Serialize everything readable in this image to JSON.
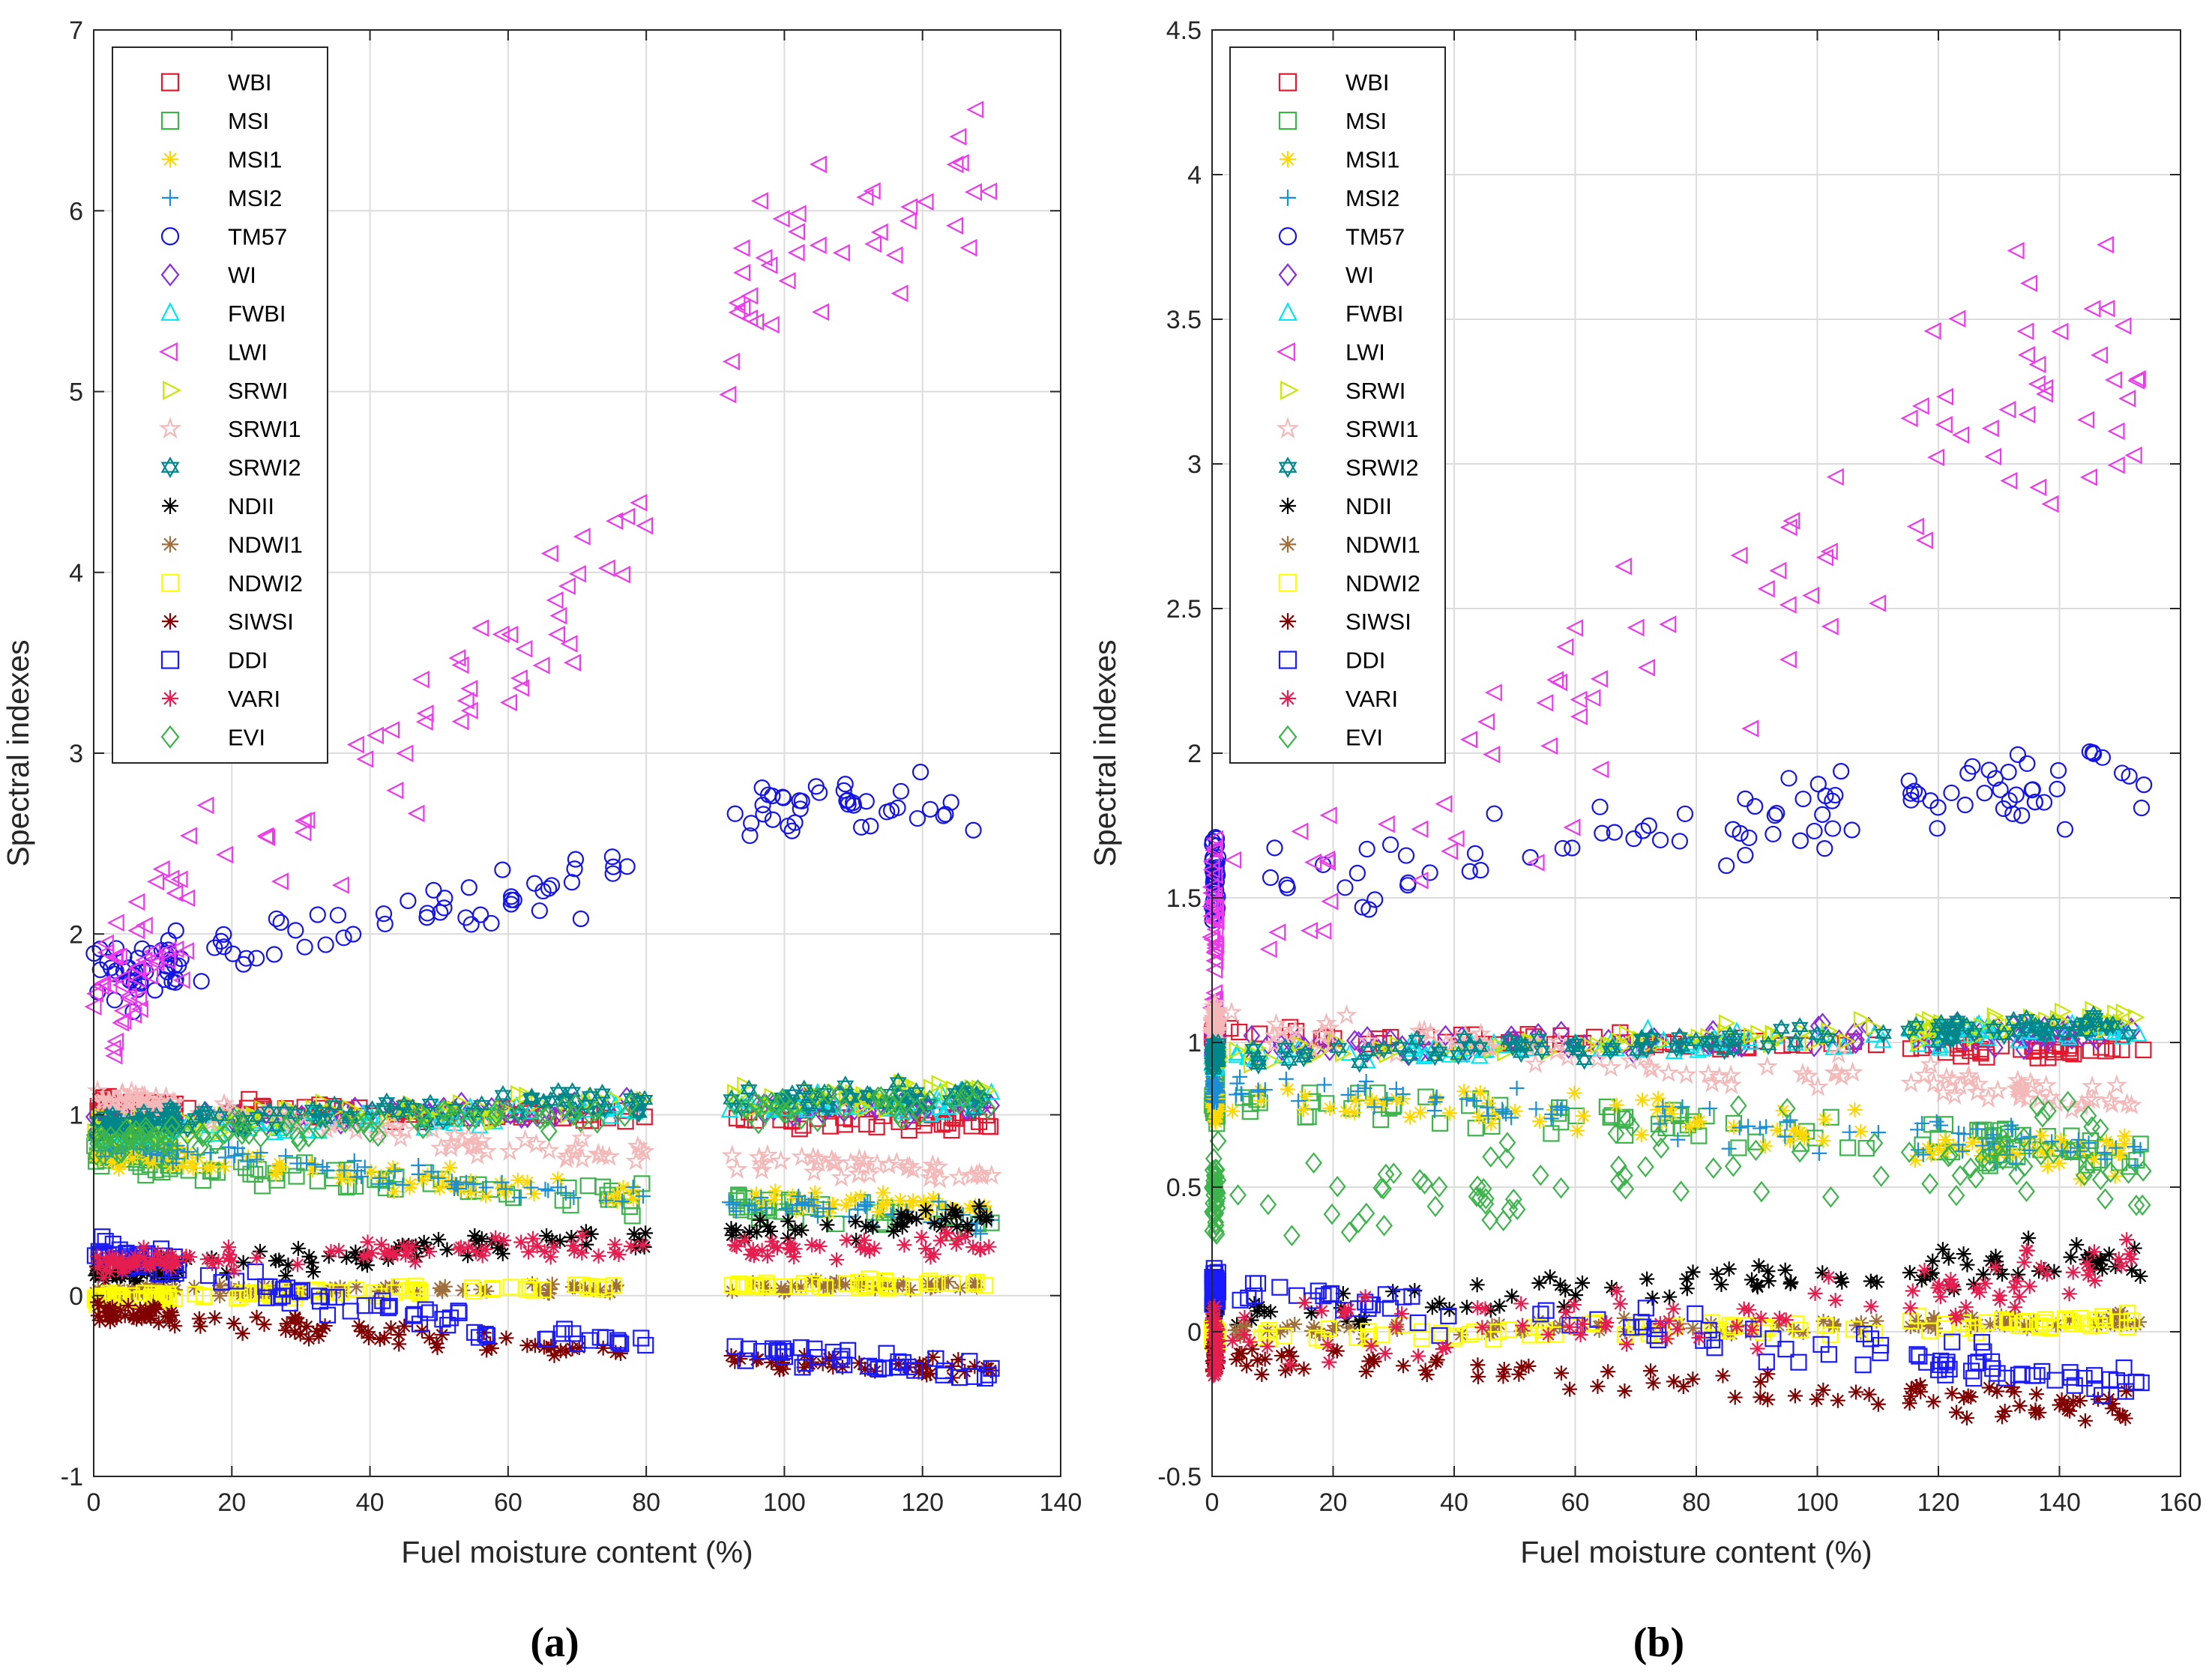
{
  "chart_data": [
    {
      "type": "scatter",
      "panel_label": "(a)",
      "xlabel": "Fuel moisture content (%)",
      "ylabel": "Spectral indexes",
      "xlim": [
        0,
        140
      ],
      "ylim": [
        -1,
        7
      ],
      "xticks": [
        "0",
        "20",
        "40",
        "60",
        "80",
        "100",
        "120",
        "140"
      ],
      "yticks": [
        "-1",
        "0",
        "1",
        "2",
        "3",
        "4",
        "5",
        "6",
        "7"
      ],
      "grid": true,
      "legend_position": "top-left",
      "x_sampling": {
        "dense": [
          0,
          12
        ],
        "sparse": [
          10,
          80
        ],
        "high": [
          92,
          130
        ]
      },
      "series": [
        {
          "name": "WBI",
          "marker": "square",
          "color": "#e2182f",
          "trend": [
            [
              0,
              1.05
            ],
            [
              60,
              1.0
            ],
            [
              130,
              0.96
            ]
          ],
          "spread": 0.04
        },
        {
          "name": "MSI",
          "marker": "square",
          "color": "#3cb44b",
          "trend": [
            [
              0,
              0.78
            ],
            [
              60,
              0.58
            ],
            [
              130,
              0.42
            ]
          ],
          "spread": 0.06
        },
        {
          "name": "MSI1",
          "marker": "asterisk",
          "color": "#ffd700",
          "trend": [
            [
              0,
              0.8
            ],
            [
              60,
              0.6
            ],
            [
              130,
              0.48
            ]
          ],
          "spread": 0.05
        },
        {
          "name": "MSI2",
          "marker": "plus",
          "color": "#1a8fd6",
          "trend": [
            [
              0,
              0.85
            ],
            [
              60,
              0.6
            ],
            [
              130,
              0.42
            ]
          ],
          "spread": 0.05
        },
        {
          "name": "TM57",
          "marker": "circle",
          "color": "#1414e6",
          "trend": [
            [
              0,
              1.75
            ],
            [
              40,
              2.1
            ],
            [
              60,
              2.15
            ],
            [
              80,
              2.45
            ],
            [
              100,
              2.7
            ],
            [
              130,
              2.75
            ]
          ],
          "spread": 0.12
        },
        {
          "name": "WI",
          "marker": "diamond",
          "color": "#8a2be2",
          "trend": [
            [
              0,
              0.95
            ],
            [
              60,
              1.02
            ],
            [
              130,
              1.05
            ]
          ],
          "spread": 0.04
        },
        {
          "name": "FWBI",
          "marker": "triangle-up",
          "color": "#00e5ee",
          "trend": [
            [
              0,
              0.9
            ],
            [
              60,
              1.0
            ],
            [
              130,
              1.07
            ]
          ],
          "spread": 0.05
        },
        {
          "name": "LWI",
          "marker": "triangle-left",
          "color": "#ee38ee",
          "trend": [
            [
              0,
              1.55
            ],
            [
              20,
              2.3
            ],
            [
              40,
              2.9
            ],
            [
              60,
              3.4
            ],
            [
              80,
              4.3
            ],
            [
              95,
              5.4
            ],
            [
              110,
              5.9
            ],
            [
              130,
              6.2
            ]
          ],
          "spread": 0.35
        },
        {
          "name": "SRWI",
          "marker": "triangle-right",
          "color": "#c8e600",
          "trend": [
            [
              0,
              0.92
            ],
            [
              60,
              1.05
            ],
            [
              130,
              1.12
            ]
          ],
          "spread": 0.05
        },
        {
          "name": "SRWI1",
          "marker": "pentagram",
          "color": "#f4b8b8",
          "trend": [
            [
              0,
              1.1
            ],
            [
              60,
              0.82
            ],
            [
              130,
              0.68
            ]
          ],
          "spread": 0.04
        },
        {
          "name": "SRWI2",
          "marker": "hexagram",
          "color": "#00868b",
          "trend": [
            [
              0,
              0.95
            ],
            [
              60,
              1.05
            ],
            [
              130,
              1.1
            ]
          ],
          "spread": 0.05
        },
        {
          "name": "NDII",
          "marker": "asterisk",
          "color": "#000000",
          "trend": [
            [
              0,
              0.12
            ],
            [
              60,
              0.28
            ],
            [
              130,
              0.42
            ]
          ],
          "spread": 0.05
        },
        {
          "name": "NDWI1",
          "marker": "asterisk",
          "color": "#a0703c",
          "trend": [
            [
              0,
              0.02
            ],
            [
              60,
              0.04
            ],
            [
              130,
              0.06
            ]
          ],
          "spread": 0.02
        },
        {
          "name": "NDWI2",
          "marker": "square",
          "color": "#ffff00",
          "trend": [
            [
              0,
              -0.02
            ],
            [
              60,
              0.04
            ],
            [
              130,
              0.07
            ]
          ],
          "spread": 0.02
        },
        {
          "name": "SIWSI",
          "marker": "asterisk",
          "color": "#800000",
          "trend": [
            [
              0,
              -0.08
            ],
            [
              60,
              -0.28
            ],
            [
              130,
              -0.42
            ]
          ],
          "spread": 0.04
        },
        {
          "name": "DDI",
          "marker": "square",
          "color": "#1a1aff",
          "trend": [
            [
              0,
              0.25
            ],
            [
              30,
              0.0
            ],
            [
              60,
              -0.2
            ],
            [
              130,
              -0.42
            ]
          ],
          "spread": 0.05
        },
        {
          "name": "VARI",
          "marker": "asterisk",
          "color": "#e61e50",
          "trend": [
            [
              0,
              0.18
            ],
            [
              60,
              0.25
            ],
            [
              130,
              0.28
            ]
          ],
          "spread": 0.05
        },
        {
          "name": "EVI",
          "marker": "diamond",
          "color": "#3cb44b",
          "trend": [
            [
              0,
              0.85
            ],
            [
              60,
              0.98
            ],
            [
              130,
              1.08
            ]
          ],
          "spread": 0.06
        }
      ]
    },
    {
      "type": "scatter",
      "panel_label": "(b)",
      "xlabel": "Fuel moisture content (%)",
      "ylabel": "Spectral indexes",
      "xlim": [
        0,
        160
      ],
      "ylim": [
        -0.5,
        4.5
      ],
      "xticks": [
        "0",
        "20",
        "40",
        "60",
        "80",
        "100",
        "120",
        "140",
        "160"
      ],
      "yticks": [
        "-0.5",
        "0",
        "0.5",
        "1",
        "1.5",
        "2",
        "2.5",
        "3",
        "3.5",
        "4",
        "4.5"
      ],
      "grid": true,
      "legend_position": "top-left",
      "x_sampling": {
        "dense": [
          0,
          1
        ],
        "sparse": [
          3,
          111
        ],
        "high": [
          115,
          154
        ]
      },
      "series": [
        {
          "name": "WBI",
          "marker": "square",
          "color": "#e2182f",
          "trend": [
            [
              0,
              1.03
            ],
            [
              80,
              1.0
            ],
            [
              154,
              0.97
            ]
          ],
          "spread": 0.02
        },
        {
          "name": "MSI",
          "marker": "square",
          "color": "#3cb44b",
          "trend": [
            [
              0,
              0.8
            ],
            [
              80,
              0.72
            ],
            [
              154,
              0.6
            ]
          ],
          "spread": 0.05
        },
        {
          "name": "MSI1",
          "marker": "asterisk",
          "color": "#ffd700",
          "trend": [
            [
              0,
              0.8
            ],
            [
              80,
              0.72
            ],
            [
              154,
              0.6
            ]
          ],
          "spread": 0.05
        },
        {
          "name": "MSI2",
          "marker": "plus",
          "color": "#1a8fd6",
          "trend": [
            [
              0,
              0.85
            ],
            [
              80,
              0.72
            ],
            [
              154,
              0.6
            ]
          ],
          "spread": 0.05
        },
        {
          "name": "TM57",
          "marker": "circle",
          "color": "#1414e6",
          "trend": [
            [
              0,
              1.55
            ],
            [
              40,
              1.62
            ],
            [
              80,
              1.72
            ],
            [
              110,
              1.82
            ],
            [
              154,
              1.95
            ]
          ],
          "spread": 0.1
        },
        {
          "name": "WI",
          "marker": "diamond",
          "color": "#8a2be2",
          "trend": [
            [
              0,
              0.98
            ],
            [
              80,
              1.0
            ],
            [
              154,
              1.05
            ]
          ],
          "spread": 0.03
        },
        {
          "name": "FWBI",
          "marker": "triangle-up",
          "color": "#00e5ee",
          "trend": [
            [
              0,
              0.95
            ],
            [
              80,
              1.0
            ],
            [
              154,
              1.05
            ]
          ],
          "spread": 0.03
        },
        {
          "name": "LWI",
          "marker": "triangle-left",
          "color": "#ee38ee",
          "trend": [
            [
              0,
              1.35
            ],
            [
              20,
              1.7
            ],
            [
              40,
              1.95
            ],
            [
              60,
              2.15
            ],
            [
              80,
              2.4
            ],
            [
              100,
              2.7
            ],
            [
              120,
              3.25
            ],
            [
              154,
              3.3
            ]
          ],
          "spread": 0.3
        },
        {
          "name": "SRWI",
          "marker": "triangle-right",
          "color": "#c8e600",
          "trend": [
            [
              0,
              0.95
            ],
            [
              80,
              1.02
            ],
            [
              154,
              1.08
            ]
          ],
          "spread": 0.03
        },
        {
          "name": "SRWI1",
          "marker": "pentagram",
          "color": "#f4b8b8",
          "trend": [
            [
              0,
              1.08
            ],
            [
              80,
              0.92
            ],
            [
              154,
              0.8
            ]
          ],
          "spread": 0.04
        },
        {
          "name": "SRWI2",
          "marker": "hexagram",
          "color": "#00868b",
          "trend": [
            [
              0,
              0.95
            ],
            [
              80,
              1.0
            ],
            [
              154,
              1.07
            ]
          ],
          "spread": 0.03
        },
        {
          "name": "NDII",
          "marker": "asterisk",
          "color": "#000000",
          "trend": [
            [
              0,
              0.06
            ],
            [
              80,
              0.16
            ],
            [
              154,
              0.26
            ]
          ],
          "spread": 0.05
        },
        {
          "name": "NDWI1",
          "marker": "asterisk",
          "color": "#a0703c",
          "trend": [
            [
              0,
              0.0
            ],
            [
              80,
              0.02
            ],
            [
              154,
              0.04
            ]
          ],
          "spread": 0.02
        },
        {
          "name": "NDWI2",
          "marker": "square",
          "color": "#ffff00",
          "trend": [
            [
              0,
              -0.02
            ],
            [
              80,
              0.01
            ],
            [
              154,
              0.04
            ]
          ],
          "spread": 0.02
        },
        {
          "name": "SIWSI",
          "marker": "asterisk",
          "color": "#800000",
          "trend": [
            [
              0,
              -0.08
            ],
            [
              80,
              -0.18
            ],
            [
              154,
              -0.27
            ]
          ],
          "spread": 0.04
        },
        {
          "name": "DDI",
          "marker": "square",
          "color": "#1a1aff",
          "trend": [
            [
              0,
              0.15
            ],
            [
              60,
              0.02
            ],
            [
              100,
              -0.05
            ],
            [
              154,
              -0.17
            ]
          ],
          "spread": 0.05
        },
        {
          "name": "VARI",
          "marker": "asterisk",
          "color": "#e61e50",
          "trend": [
            [
              0,
              -0.03
            ],
            [
              80,
              0.02
            ],
            [
              154,
              0.25
            ]
          ],
          "spread": 0.08
        },
        {
          "name": "EVI",
          "marker": "diamond",
          "color": "#3cb44b",
          "trend": [
            [
              0,
              0.45
            ],
            [
              40,
              0.5
            ],
            [
              80,
              0.6
            ],
            [
              154,
              0.62
            ]
          ],
          "spread": 0.12
        }
      ]
    }
  ]
}
